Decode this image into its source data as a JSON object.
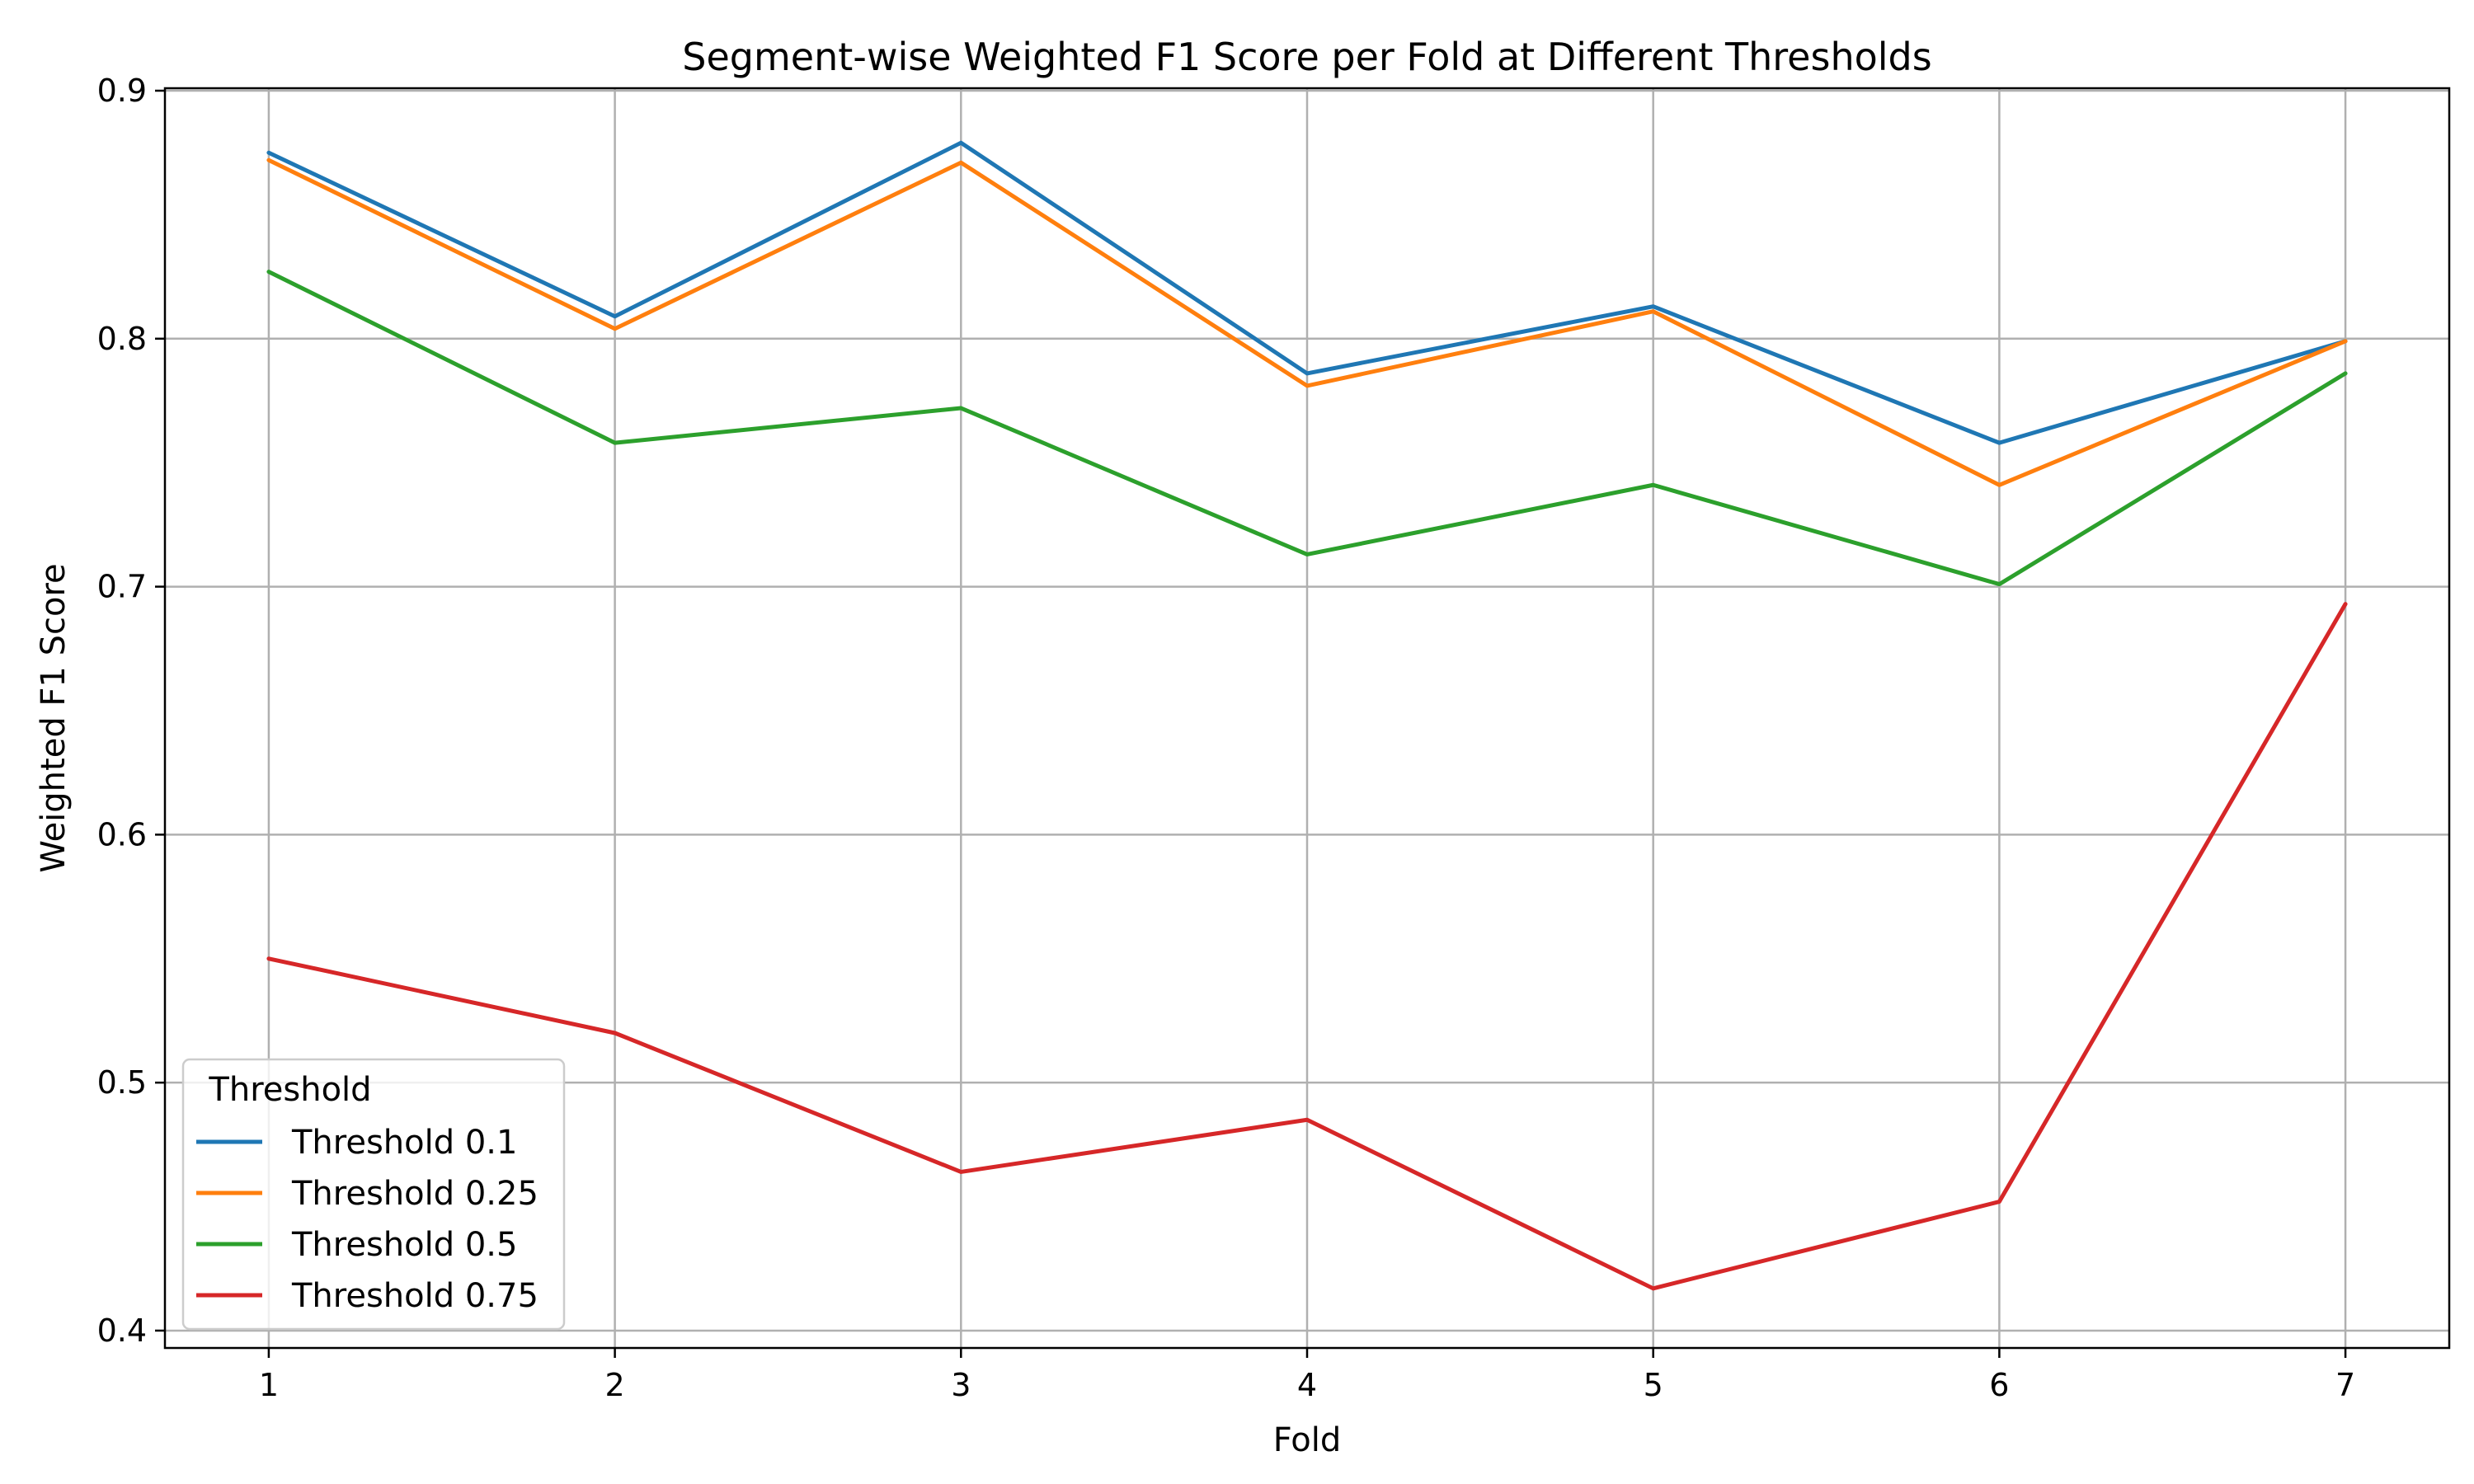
{
  "chart_data": {
    "type": "line",
    "title": "Segment-wise Weighted F1 Score per Fold at Different Thresholds",
    "xlabel": "Fold",
    "ylabel": "Weighted F1 Score",
    "x": [
      1,
      2,
      3,
      4,
      5,
      6,
      7
    ],
    "x_ticks": [
      "1",
      "2",
      "3",
      "4",
      "5",
      "6",
      "7"
    ],
    "xlim": [
      0.7,
      7.3
    ],
    "y_ticks": [
      "0.4",
      "0.5",
      "0.6",
      "0.7",
      "0.8",
      "0.9"
    ],
    "ylim": [
      0.393,
      0.901
    ],
    "grid": true,
    "legend": {
      "title": "Threshold",
      "placement": "lower-left"
    },
    "series": [
      {
        "name": "Threshold 0.1",
        "color": "#1f77b4",
        "values": [
          0.875,
          0.809,
          0.879,
          0.786,
          0.813,
          0.758,
          0.799
        ]
      },
      {
        "name": "Threshold 0.25",
        "color": "#ff7f0e",
        "values": [
          0.872,
          0.804,
          0.871,
          0.781,
          0.811,
          0.741,
          0.799
        ]
      },
      {
        "name": "Threshold 0.5",
        "color": "#2ca02c",
        "values": [
          0.827,
          0.758,
          0.772,
          0.713,
          0.741,
          0.701,
          0.786
        ]
      },
      {
        "name": "Threshold 0.75",
        "color": "#d62728",
        "values": [
          0.55,
          0.52,
          0.464,
          0.485,
          0.417,
          0.452,
          0.693
        ]
      }
    ]
  }
}
